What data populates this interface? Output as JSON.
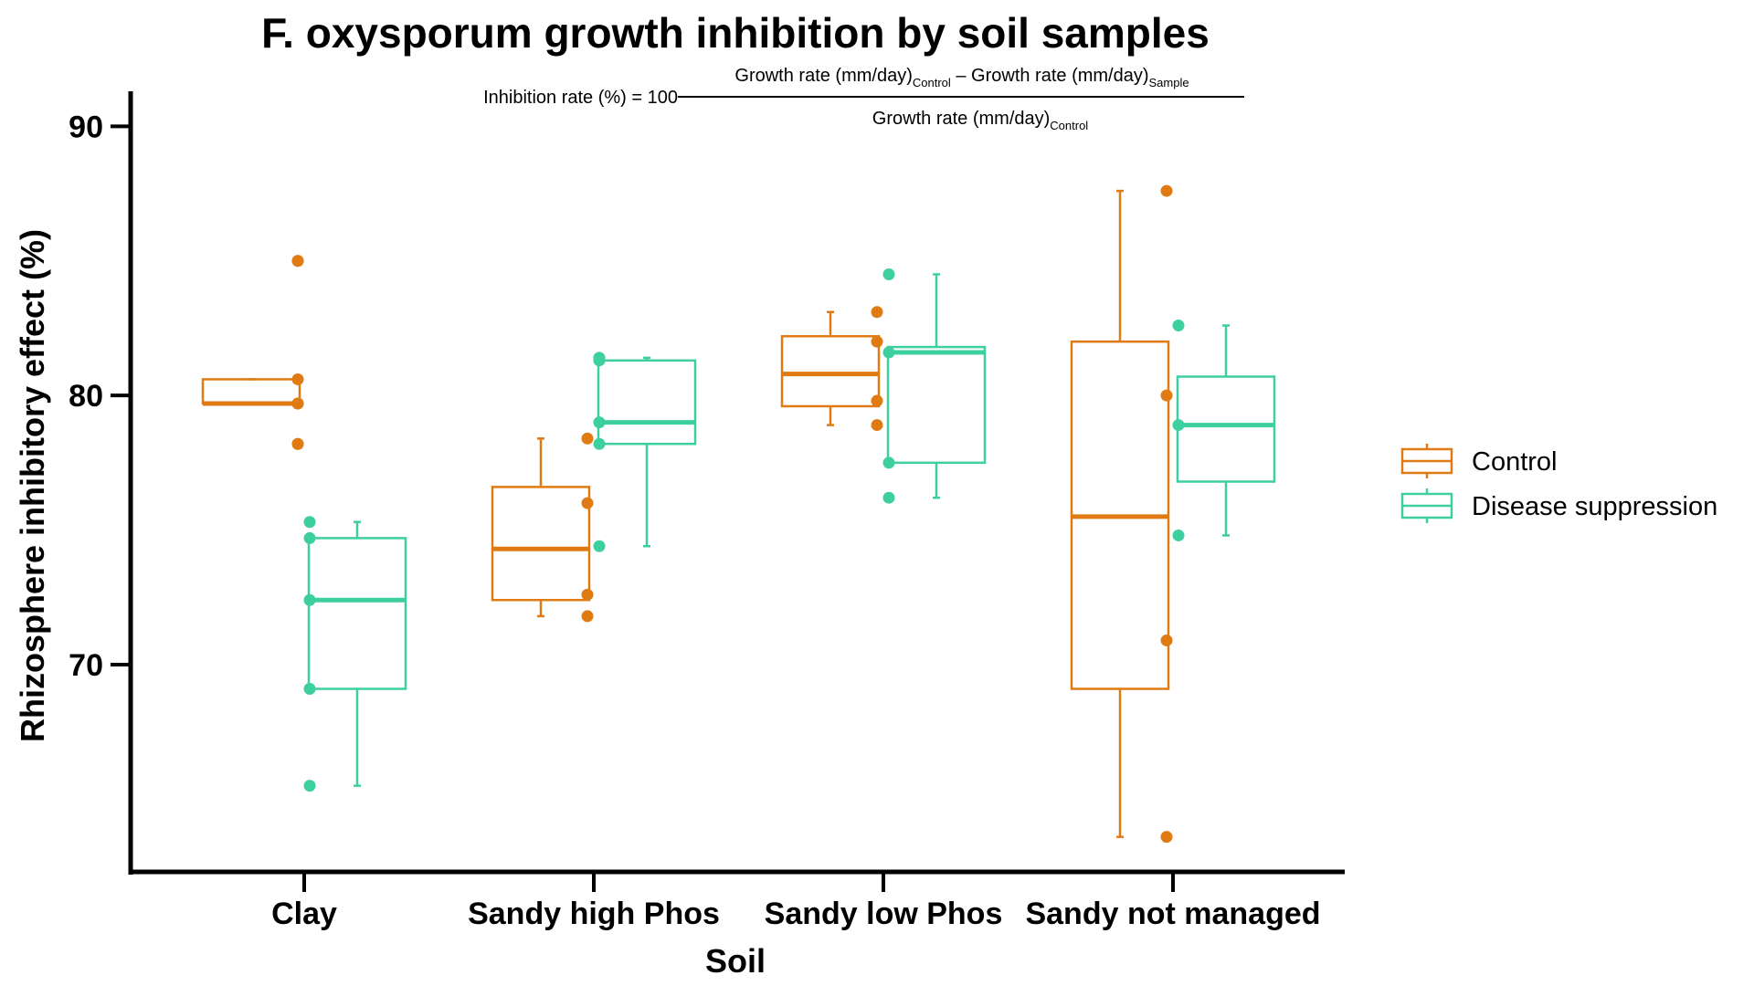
{
  "chart_data": {
    "type": "box",
    "title": "F. oxysporum growth inhibition by soil samples",
    "formula": {
      "lhs": "Inhibition rate (%) = 100",
      "numerator_part1": "Growth rate (mm/day)",
      "numerator_sub1": "Control",
      "numerator_minus": " – Growth rate (mm/day)",
      "numerator_sub2": "Sample",
      "denominator": "Growth rate (mm/day)",
      "denominator_sub": "Control"
    },
    "xlabel": "Soil",
    "ylabel": "Rhizosphere inhibitory effect (%)",
    "categories": [
      "Clay",
      "Sandy high Phos",
      "Sandy low Phos",
      "Sandy not managed"
    ],
    "ylim": [
      62.3,
      91.3
    ],
    "yticks": [
      70,
      80,
      90
    ],
    "legend_position": "right",
    "series": [
      {
        "name": "Control",
        "color": "#E07B14",
        "boxes": [
          {
            "min": 79.7,
            "q1": 79.7,
            "median": 79.7,
            "q3": 80.6,
            "max": 80.6,
            "points": [
              85.0,
              85.0,
              80.6,
              79.7,
              79.7,
              78.2,
              78.2
            ]
          },
          {
            "min": 71.8,
            "q1": 72.4,
            "median": 74.3,
            "q3": 76.6,
            "max": 78.4,
            "points": [
              78.4,
              76.0,
              72.6,
              71.8
            ]
          },
          {
            "min": 78.9,
            "q1": 79.6,
            "median": 80.8,
            "q3": 82.2,
            "max": 83.1,
            "points": [
              83.1,
              82.0,
              79.8,
              78.9
            ]
          },
          {
            "min": 63.6,
            "q1": 69.1,
            "median": 75.5,
            "q3": 82.0,
            "max": 87.6,
            "points": [
              87.6,
              80.0,
              70.9,
              63.6
            ]
          }
        ]
      },
      {
        "name": "Disease suppression",
        "color": "#3ECFA0",
        "boxes": [
          {
            "min": 65.5,
            "q1": 69.1,
            "median": 72.4,
            "q3": 74.7,
            "max": 75.3,
            "points": [
              75.3,
              74.7,
              72.4,
              69.1,
              65.5
            ]
          },
          {
            "min": 74.4,
            "q1": 78.2,
            "median": 79.0,
            "q3": 81.3,
            "max": 81.4,
            "points": [
              81.4,
              81.3,
              79.0,
              78.2,
              74.4
            ]
          },
          {
            "min": 76.2,
            "q1": 77.5,
            "median": 81.6,
            "q3": 81.8,
            "max": 84.5,
            "points": [
              84.5,
              81.6,
              77.5,
              76.2
            ]
          },
          {
            "min": 74.8,
            "q1": 76.8,
            "median": 78.9,
            "q3": 80.7,
            "max": 82.6,
            "points": [
              82.6,
              78.9,
              74.8
            ]
          }
        ]
      }
    ]
  }
}
